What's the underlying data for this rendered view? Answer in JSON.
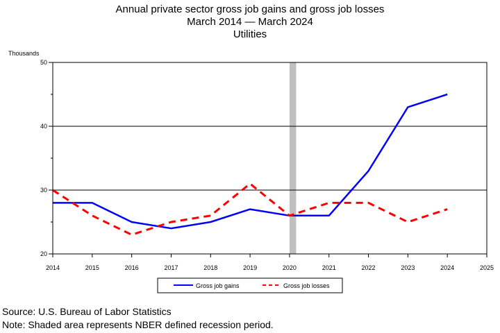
{
  "header": {
    "title_line1": "Annual private sector gross job gains and gross job losses",
    "title_line2": "March 2014 — March 2024",
    "title_line3": "Utilities"
  },
  "footer": {
    "source": "Source: U.S. Bureau of Labor Statistics",
    "note": "Note: Shaded area represents NBER defined recession period."
  },
  "colors": {
    "gains": "#0000ff",
    "losses": "#ff0000",
    "recession": "#c0c0c0"
  },
  "chart_data": {
    "type": "line",
    "ylabel": "Thousands",
    "xlim": [
      2014,
      2025
    ],
    "ylim": [
      20,
      50
    ],
    "x_ticks": [
      "2014",
      "2015",
      "2016",
      "2017",
      "2018",
      "2019",
      "2020",
      "2021",
      "2022",
      "2023",
      "2024",
      "2025"
    ],
    "y_ticks": [
      "20",
      "30",
      "40",
      "50"
    ],
    "grid": "horizontal",
    "legend_position": "bottom-center",
    "recession_band": [
      2020,
      2020.167
    ],
    "x": [
      2014,
      2015,
      2016,
      2017,
      2018,
      2019,
      2020,
      2021,
      2022,
      2023,
      2024
    ],
    "series": [
      {
        "name": "Gross job gains",
        "style": "solid",
        "values": [
          28,
          28,
          25,
          24,
          25,
          27,
          26,
          26,
          33,
          43,
          45
        ]
      },
      {
        "name": "Gross job losses",
        "style": "dashed",
        "values": [
          30,
          26,
          23,
          25,
          26,
          31,
          26,
          28,
          28,
          25,
          27
        ]
      }
    ]
  }
}
